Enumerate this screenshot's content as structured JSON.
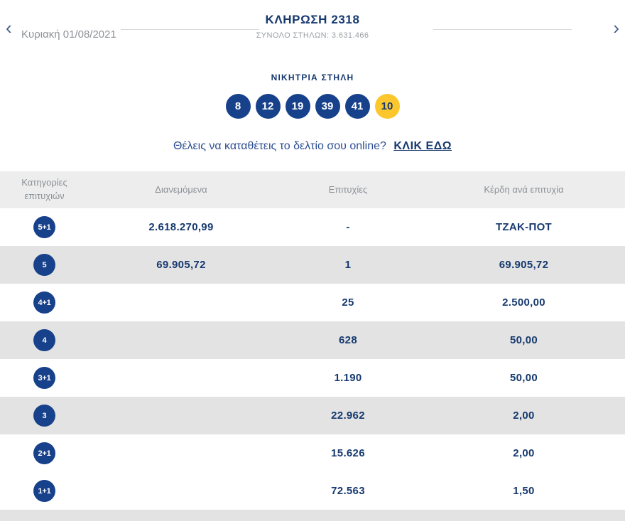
{
  "header": {
    "title": "ΚΛΗΡΩΣΗ 2318",
    "subtitle": "ΣΥΝΟΛΟ ΣΤΗΛΩΝ: 3.631.466",
    "date": "Κυριακή 01/08/2021"
  },
  "icons": {
    "prev_chevron": "‹",
    "next_chevron": "›"
  },
  "winning": {
    "label": "ΝΙΚΗΤΡΙΑ ΣΤΗΛΗ",
    "numbers": [
      "8",
      "12",
      "19",
      "39",
      "41"
    ],
    "joker": "10"
  },
  "cta": {
    "text": "Θέλεις να καταθέτεις το δελτίο σου online?",
    "link": "ΚΛΙΚ ΕΔΩ"
  },
  "table": {
    "headers": [
      "Κατηγορίες επιτυχιών",
      "Διανεμόμενα",
      "Επιτυχίες",
      "Κέρδη ανά επιτυχία"
    ],
    "rows": [
      {
        "category": "5+1",
        "distributed": "2.618.270,99",
        "wins": "-",
        "per_win": "ΤΖΑΚ-ΠΟΤ",
        "shade": false
      },
      {
        "category": "5",
        "distributed": "69.905,72",
        "wins": "1",
        "per_win": "69.905,72",
        "shade": true
      },
      {
        "category": "4+1",
        "distributed": "",
        "wins": "25",
        "per_win": "2.500,00",
        "shade": false
      },
      {
        "category": "4",
        "distributed": "",
        "wins": "628",
        "per_win": "50,00",
        "shade": true
      },
      {
        "category": "3+1",
        "distributed": "",
        "wins": "1.190",
        "per_win": "50,00",
        "shade": false
      },
      {
        "category": "3",
        "distributed": "",
        "wins": "22.962",
        "per_win": "2,00",
        "shade": true
      },
      {
        "category": "2+1",
        "distributed": "",
        "wins": "15.626",
        "per_win": "2,00",
        "shade": false
      },
      {
        "category": "1+1",
        "distributed": "",
        "wins": "72.563",
        "per_win": "1,50",
        "shade": false
      }
    ]
  },
  "colors": {
    "navy": "#16396f",
    "ballBlue": "#17418b",
    "jokerYellow": "#fcc72c",
    "lineGray": "#d9d9d9",
    "headerBg": "#ededed",
    "shadeBg": "#e3e3e3"
  }
}
